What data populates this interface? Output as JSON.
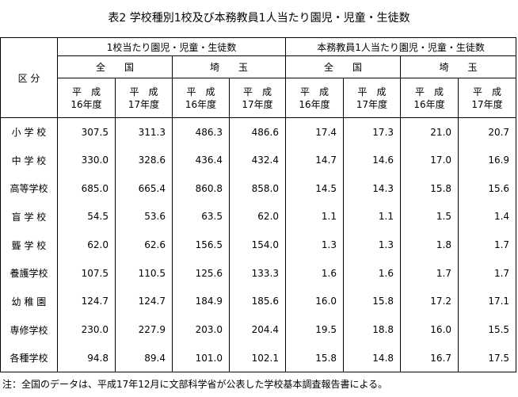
{
  "title": "表2 学校種別1校及び本務教員1人当たり園児・児童・生徒数",
  "table": {
    "corner": "区 分",
    "groups": [
      "1校当たり園児・児童・生徒数",
      "本務教員1人当たり園児・児童・生徒数"
    ],
    "subgroups": [
      "全　　国",
      "埼　　玉",
      "全　　国",
      "埼　　玉"
    ],
    "columns": [
      [
        "平　成",
        "16年度"
      ],
      [
        "平　成",
        "17年度"
      ],
      [
        "平　成",
        "16年度"
      ],
      [
        "平　成",
        "17年度"
      ],
      [
        "平　成",
        "16年度"
      ],
      [
        "平　成",
        "17年度"
      ],
      [
        "平　成",
        "16年度"
      ],
      [
        "平　成",
        "17年度"
      ]
    ],
    "rows": [
      [
        "小 学 校",
        "307.5",
        "311.3",
        "486.3",
        "486.6",
        "17.4",
        "17.3",
        "21.0",
        "20.7"
      ],
      [
        "中 学 校",
        "330.0",
        "328.6",
        "436.4",
        "432.4",
        "14.7",
        "14.6",
        "17.0",
        "16.9"
      ],
      [
        "高等学校",
        "685.0",
        "665.4",
        "860.8",
        "858.0",
        "14.5",
        "14.3",
        "15.8",
        "15.6"
      ],
      [
        "盲 学 校",
        "54.5",
        "53.6",
        "63.5",
        "62.0",
        "1.1",
        "1.1",
        "1.5",
        "1.4"
      ],
      [
        "聾 学 校",
        "62.0",
        "62.6",
        "156.5",
        "154.0",
        "1.3",
        "1.3",
        "1.8",
        "1.7"
      ],
      [
        "養護学校",
        "107.5",
        "110.5",
        "125.6",
        "133.3",
        "1.6",
        "1.6",
        "1.7",
        "1.7"
      ],
      [
        "幼 稚 園",
        "124.7",
        "124.7",
        "184.9",
        "185.6",
        "16.0",
        "15.8",
        "17.2",
        "17.1"
      ],
      [
        "専修学校",
        "230.0",
        "227.9",
        "203.0",
        "204.4",
        "19.5",
        "18.8",
        "16.0",
        "15.5"
      ],
      [
        "各種学校",
        "94.8",
        "89.4",
        "101.0",
        "102.1",
        "15.8",
        "14.8",
        "16.7",
        "17.5"
      ]
    ]
  },
  "note": "注：全国のデータは、平成17年12月に文部科学省が公表した学校基本調査報告書による。"
}
